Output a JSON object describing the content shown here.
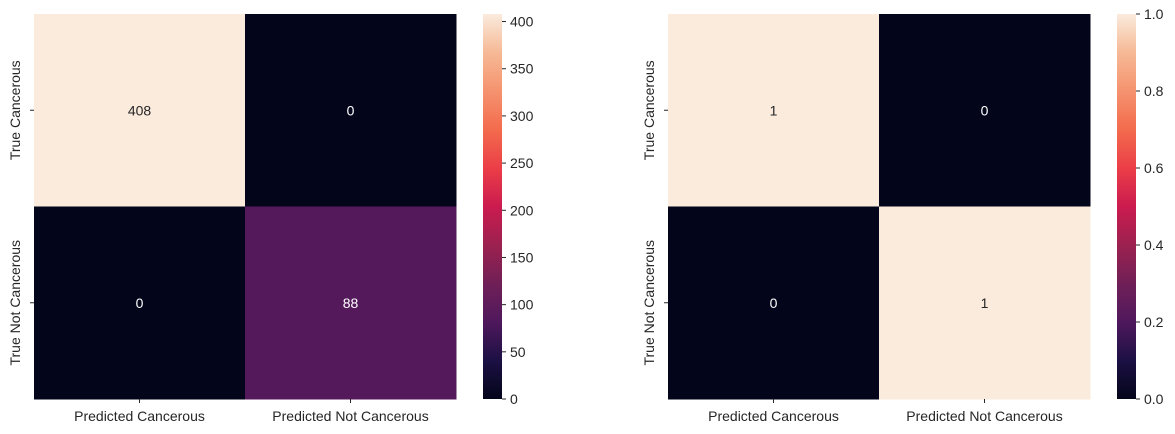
{
  "chart_data": [
    {
      "type": "heatmap",
      "title": "",
      "xlabel": "",
      "ylabel": "",
      "x_categories": [
        "Predicted Cancerous",
        "Predicted Not Cancerous"
      ],
      "y_categories": [
        "True Cancerous",
        "True Not Cancerous"
      ],
      "values": [
        [
          408,
          0
        ],
        [
          0,
          88
        ]
      ],
      "annotations": [
        "408",
        "0",
        "0",
        "88"
      ],
      "colormap": "rocket",
      "colorbar": {
        "range": [
          0,
          408
        ],
        "ticks": [
          0,
          50,
          100,
          150,
          200,
          250,
          300,
          350,
          400
        ],
        "tick_labels": [
          "0",
          "50",
          "100",
          "150",
          "200",
          "250",
          "300",
          "350",
          "400"
        ]
      }
    },
    {
      "type": "heatmap",
      "title": "",
      "xlabel": "",
      "ylabel": "",
      "x_categories": [
        "Predicted Cancerous",
        "Predicted Not Cancerous"
      ],
      "y_categories": [
        "True Cancerous",
        "True Not Cancerous"
      ],
      "values": [
        [
          1,
          0
        ],
        [
          0,
          1
        ]
      ],
      "annotations": [
        "1",
        "0",
        "0",
        "1"
      ],
      "colormap": "rocket",
      "colorbar": {
        "range": [
          0,
          1
        ],
        "ticks": [
          0,
          0.2,
          0.4,
          0.6,
          0.8,
          1.0
        ],
        "tick_labels": [
          "0.0",
          "0.2",
          "0.4",
          "0.6",
          "0.8",
          "1.0"
        ]
      }
    }
  ]
}
